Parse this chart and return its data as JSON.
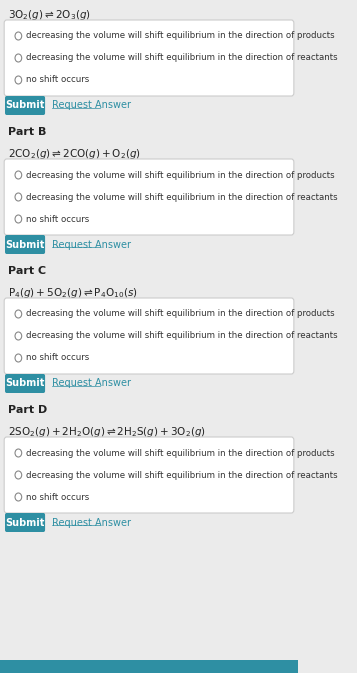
{
  "bg_color": "#ebebeb",
  "white": "#ffffff",
  "teal": "#2e8fa3",
  "teal_link": "#2e8fa3",
  "text_dark": "#222222",
  "text_radio": "#333333",
  "parts": [
    {
      "equation_str": "$3\\mathrm{O_2}(g) \\rightleftharpoons 2\\mathrm{O_3}(g)$",
      "options": [
        "decreasing the volume will shift equilibrium in the direction of products",
        "decreasing the volume will shift equilibrium in the direction of reactants",
        "no shift occurs"
      ],
      "has_part_label": false,
      "part_label": ""
    },
    {
      "equation_str": "$2\\mathrm{CO_2}(g) \\rightleftharpoons 2\\mathrm{CO}(g) + \\mathrm{O_2}(g)$",
      "options": [
        "decreasing the volume will shift equilibrium in the direction of products",
        "decreasing the volume will shift equilibrium in the direction of reactants",
        "no shift occurs"
      ],
      "has_part_label": true,
      "part_label": "Part B"
    },
    {
      "equation_str": "$\\mathrm{P_4}(g) + 5\\mathrm{O_2}(g) \\rightleftharpoons \\mathrm{P_4O_{10}}(s)$",
      "options": [
        "decreasing the volume will shift equilibrium in the direction of products",
        "decreasing the volume will shift equilibrium in the direction of reactants",
        "no shift occurs"
      ],
      "has_part_label": true,
      "part_label": "Part C"
    },
    {
      "equation_str": "$2\\mathrm{SO_2}(g) + 2\\mathrm{H_2O}(g) \\rightleftharpoons 2\\mathrm{H_2S}(g) + 3\\mathrm{O_2}(g)$",
      "options": [
        "decreasing the volume will shift equilibrium in the direction of products",
        "decreasing the volume will shift equilibrium in the direction of reactants",
        "no shift occurs"
      ],
      "has_part_label": true,
      "part_label": "Part D"
    }
  ],
  "submit_text": "Submit",
  "request_text": "Request Answer"
}
